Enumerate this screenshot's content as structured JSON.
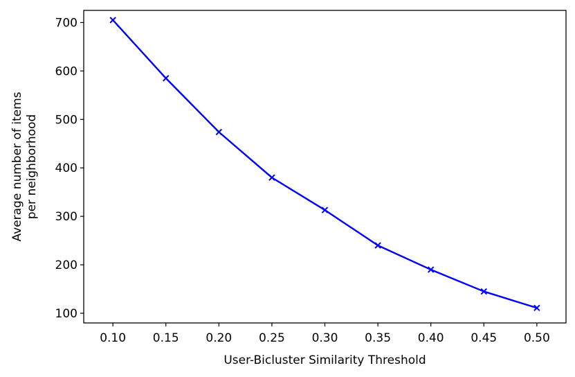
{
  "chart_data": {
    "type": "line",
    "title": "",
    "xlabel": "User-Bicluster Similarity Threshold",
    "ylabel_lines": [
      "Average number of items",
      "per neighborhood"
    ],
    "x": [
      0.1,
      0.15,
      0.2,
      0.25,
      0.3,
      0.35,
      0.4,
      0.45,
      0.5
    ],
    "x_tick_labels": [
      "0.10",
      "0.15",
      "0.20",
      "0.25",
      "0.30",
      "0.35",
      "0.40",
      "0.45",
      "0.50"
    ],
    "y_ticks": [
      100,
      200,
      300,
      400,
      500,
      600,
      700
    ],
    "y_tick_labels": [
      "100",
      "200",
      "300",
      "400",
      "500",
      "600",
      "700"
    ],
    "xlim": [
      0.0725,
      0.5275
    ],
    "ylim": [
      80,
      725
    ],
    "grid": false,
    "series": [
      {
        "values": [
          705,
          585,
          474,
          380,
          313,
          240,
          190,
          145,
          111
        ],
        "color": "#0000ff",
        "marker": "x"
      }
    ]
  }
}
